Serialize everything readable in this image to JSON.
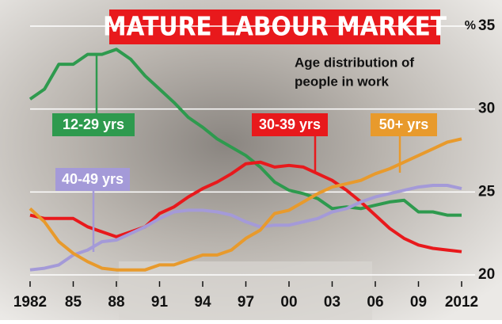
{
  "chart_data": {
    "type": "line",
    "title": "MATURE LABOUR MARKET",
    "subtitle": [
      "Age distribution of",
      "people in work"
    ],
    "y_unit": "%",
    "x": [
      1982,
      1983,
      1984,
      1985,
      1986,
      1987,
      1988,
      1989,
      1990,
      1991,
      1992,
      1993,
      1994,
      1995,
      1996,
      1997,
      1998,
      1999,
      2000,
      2001,
      2002,
      2003,
      2004,
      2005,
      2006,
      2007,
      2008,
      2009,
      2010,
      2011,
      2012
    ],
    "xlim": [
      1982,
      2012
    ],
    "xticks": [
      1982,
      {
        "value": 1985,
        "label": "85"
      },
      {
        "value": 1988,
        "label": "88"
      },
      {
        "value": 1991,
        "label": "91"
      },
      {
        "value": 1994,
        "label": "94"
      },
      {
        "value": 1997,
        "label": "97"
      },
      {
        "value": 2000,
        "label": "00"
      },
      {
        "value": 2003,
        "label": "03"
      },
      {
        "value": 2006,
        "label": "06"
      },
      {
        "value": 2009,
        "label": "09"
      },
      2012
    ],
    "ylim": [
      20,
      35
    ],
    "yticks": [
      20,
      25,
      30,
      35
    ],
    "grid": true,
    "series": [
      {
        "name": "12-29 yrs",
        "color": "#2e9a4e",
        "values": [
          30.6,
          31.2,
          32.7,
          32.7,
          33.3,
          33.3,
          33.6,
          33.0,
          32.0,
          31.2,
          30.4,
          29.5,
          28.9,
          28.2,
          27.7,
          27.2,
          26.5,
          25.6,
          25.1,
          24.9,
          24.6,
          24.0,
          24.1,
          24.0,
          24.2,
          24.4,
          24.5,
          23.8,
          23.8,
          23.6,
          23.6
        ]
      },
      {
        "name": "30-39 yrs",
        "color": "#e8191c",
        "values": [
          23.6,
          23.4,
          23.4,
          23.4,
          22.9,
          22.6,
          22.3,
          22.6,
          22.9,
          23.7,
          24.1,
          24.7,
          25.2,
          25.6,
          26.1,
          26.7,
          26.8,
          26.5,
          26.6,
          26.5,
          26.1,
          25.7,
          25.1,
          24.4,
          23.6,
          22.8,
          22.2,
          21.8,
          21.6,
          21.5,
          21.4
        ]
      },
      {
        "name": "40-49 yrs",
        "color": "#a49ad8",
        "values": [
          20.3,
          20.4,
          20.6,
          21.2,
          21.5,
          22.0,
          22.1,
          22.5,
          22.9,
          23.4,
          23.8,
          23.9,
          23.9,
          23.8,
          23.6,
          23.2,
          22.9,
          23.0,
          23.0,
          23.2,
          23.4,
          23.8,
          24.0,
          24.4,
          24.7,
          24.9,
          25.1,
          25.3,
          25.4,
          25.4,
          25.2
        ]
      },
      {
        "name": "50+ yrs",
        "color": "#e89a2c",
        "values": [
          24.0,
          23.2,
          22.0,
          21.3,
          20.8,
          20.4,
          20.3,
          20.3,
          20.3,
          20.6,
          20.6,
          20.9,
          21.2,
          21.2,
          21.5,
          22.2,
          22.7,
          23.7,
          23.9,
          24.4,
          24.9,
          25.3,
          25.5,
          25.7,
          26.1,
          26.4,
          26.8,
          27.2,
          27.6,
          28.0,
          28.2
        ]
      }
    ]
  }
}
